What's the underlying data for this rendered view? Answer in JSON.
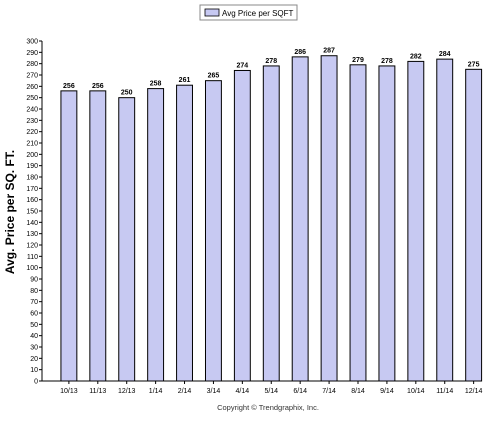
{
  "chart_data": {
    "type": "bar",
    "title": "",
    "xlabel": "",
    "ylabel": "Avg. Price per SQ. FT.",
    "legend": {
      "entries": [
        "Avg Price per SQFT"
      ],
      "placement": "top-center"
    },
    "footer": "Copyright © Trendgraphix, Inc.",
    "categories": [
      "10/13",
      "11/13",
      "12/13",
      "1/14",
      "2/14",
      "3/14",
      "4/14",
      "5/14",
      "6/14",
      "7/14",
      "8/14",
      "9/14",
      "10/14",
      "11/14",
      "12/14"
    ],
    "series": [
      {
        "name": "Avg Price per SQFT",
        "values": [
          256,
          256,
          250,
          258,
          261,
          265,
          274,
          278,
          286,
          287,
          279,
          278,
          282,
          284,
          275
        ]
      }
    ],
    "ylim": [
      0,
      300
    ],
    "ytick_step": 10,
    "grid": false,
    "data_labels": true,
    "colors": {
      "bar_fill": "#c7c9f2",
      "bar_stroke": "#000000",
      "axis": "#000000",
      "text": "#000000",
      "legend_border": "#888888"
    }
  }
}
